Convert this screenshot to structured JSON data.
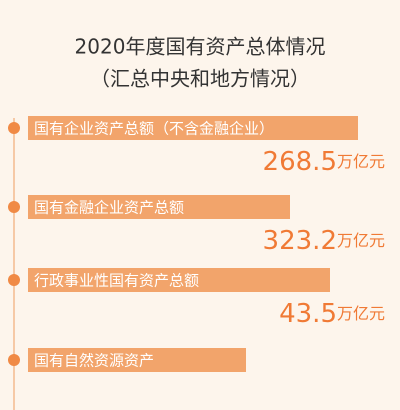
{
  "title": "2020年度国有资产总体情况",
  "subtitle": "（汇总中央和地方情况）",
  "items": [
    {
      "label": "国有企业资产总额（不含金融企业）",
      "value": 268.5,
      "unit": "万亿元"
    },
    {
      "label": "国有金融企业资产总额",
      "value": 323.2,
      "unit": "万亿元"
    },
    {
      "label": "行政事业性国有资产总额",
      "value": 43.5,
      "unit": "万亿元"
    },
    {
      "label": "国有自然资源资产"
    }
  ]
}
